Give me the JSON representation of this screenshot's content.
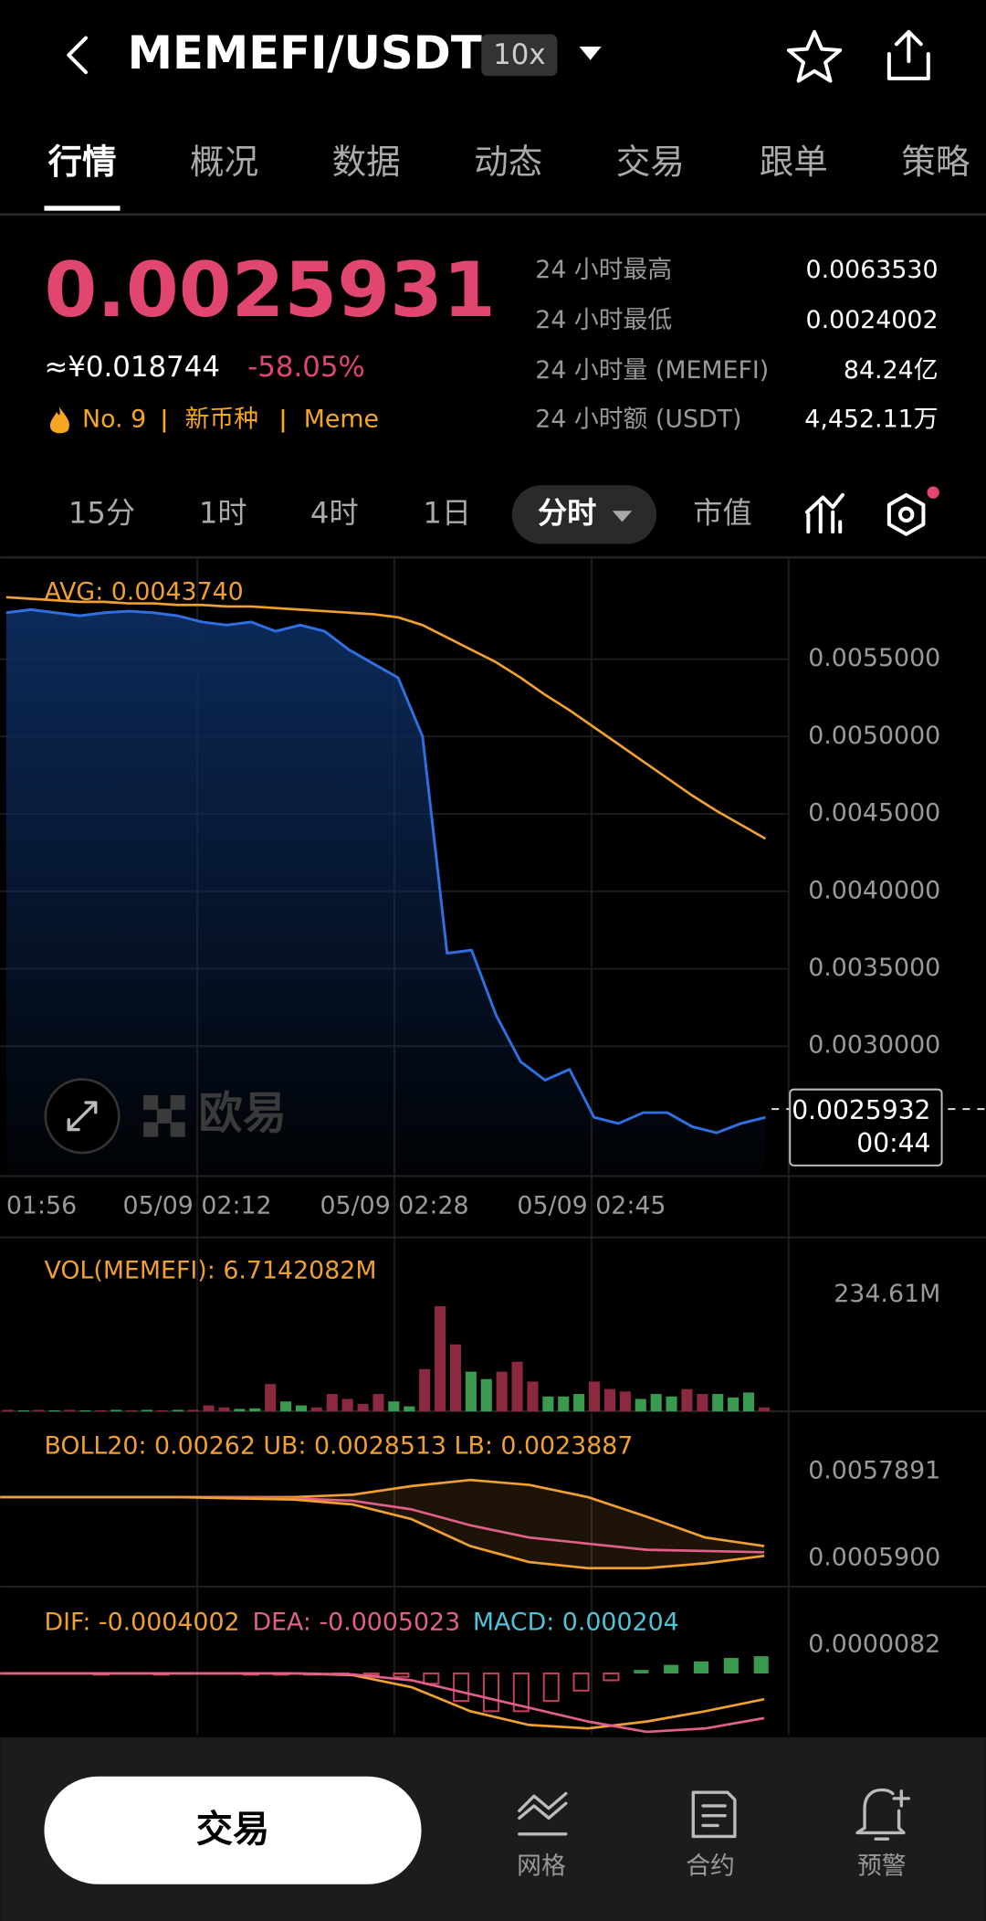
{
  "header": {
    "pair": "MEMEFI/USDT",
    "leverage": "10x"
  },
  "tabs": [
    "行情",
    "概况",
    "数据",
    "动态",
    "交易",
    "跟单",
    "策略"
  ],
  "price": {
    "last": "0.0025931",
    "cny": "≈¥0.018744",
    "change": "-58.05%",
    "rank": "No. 9",
    "tags": [
      "新币种",
      "Meme"
    ]
  },
  "stats": [
    {
      "label": "24 小时最高",
      "value": "0.0063530"
    },
    {
      "label": "24 小时最低",
      "value": "0.0024002"
    },
    {
      "label": "24 小时量 (MEMEFI)",
      "value": "84.24亿"
    },
    {
      "label": "24 小时额 (USDT)",
      "value": "4,452.11万"
    }
  ],
  "intervals": [
    "15分",
    "1时",
    "4时",
    "1日",
    "分时",
    "市值"
  ],
  "chart": {
    "avg_label": "AVG: 0.0043740",
    "watermark": "欧易",
    "ylim": [
      0.00216,
      0.006157
    ],
    "yticks": [
      {
        "value": 0.0055,
        "label": "0.0055000"
      },
      {
        "value": 0.005,
        "label": "0.0050000"
      },
      {
        "value": 0.0045,
        "label": "0.0045000"
      },
      {
        "value": 0.004,
        "label": "0.0040000"
      },
      {
        "value": 0.0035,
        "label": "0.0035000"
      },
      {
        "value": 0.003,
        "label": "0.0030000"
      }
    ],
    "price_color": "#2f6fe0",
    "avg_color": "#f0a030",
    "price": [
      0.0058,
      0.00582,
      0.0058,
      0.00578,
      0.0058,
      0.00581,
      0.0058,
      0.00578,
      0.00574,
      0.00572,
      0.00574,
      0.00568,
      0.00572,
      0.00568,
      0.00556,
      0.00547,
      0.00538,
      0.005,
      0.0036,
      0.00362,
      0.0032,
      0.0029,
      0.00278,
      0.00285,
      0.00254,
      0.0025,
      0.00257,
      0.00257,
      0.00248,
      0.00244,
      0.0025,
      0.00254
    ],
    "avg": [
      0.0059,
      0.00589,
      0.00588,
      0.00587,
      0.00587,
      0.00586,
      0.00586,
      0.00585,
      0.00585,
      0.00584,
      0.00584,
      0.00583,
      0.00582,
      0.00581,
      0.0058,
      0.00579,
      0.00577,
      0.00572,
      0.00564,
      0.00556,
      0.00548,
      0.00538,
      0.00527,
      0.00517,
      0.00506,
      0.00495,
      0.00484,
      0.00473,
      0.00462,
      0.00452,
      0.00443,
      0.00434
    ],
    "current": {
      "value": 0.0025932,
      "label": "0.0025932"
    },
    "countdown": "00:44",
    "xticks": [
      "01:56",
      "05/09 02:12",
      "05/09 02:28",
      "05/09 02:45"
    ]
  },
  "volume": {
    "label": "VOL(MEMEFI): 6.7142082M",
    "ylim": [
      0,
      234.61
    ],
    "yticks": [
      {
        "value": 234.61,
        "label": "234.61M"
      }
    ],
    "up_color": "#3a9a4f",
    "down_color": "#8b2941",
    "values": [
      3,
      2,
      3,
      2,
      3,
      2,
      2,
      3,
      2,
      3,
      2,
      3,
      3,
      12,
      8,
      5,
      6,
      55,
      20,
      12,
      8,
      35,
      25,
      15,
      35,
      20,
      10,
      85,
      212,
      135,
      80,
      65,
      80,
      100,
      60,
      30,
      30,
      35,
      60,
      45,
      40,
      25,
      35,
      30,
      45,
      35,
      35,
      28,
      38,
      8
    ],
    "up": [
      0,
      1,
      0,
      1,
      0,
      1,
      0,
      1,
      0,
      1,
      0,
      1,
      0,
      0,
      0,
      1,
      1,
      0,
      1,
      1,
      0,
      0,
      0,
      0,
      0,
      1,
      1,
      0,
      0,
      0,
      1,
      1,
      0,
      0,
      0,
      1,
      1,
      1,
      0,
      0,
      0,
      1,
      1,
      1,
      0,
      0,
      1,
      1,
      1,
      0
    ]
  },
  "boll": {
    "label": "BOLL20: 0.00262 UB: 0.0028513 LB: 0.0023887",
    "ylim": [
      -0.001094,
      0.009158
    ],
    "yticks": [
      0.0057891,
      {
        "value": 0.00059,
        "label": "0.0005900"
      }
    ],
    "band_color": "#f0a030",
    "mid_color": "#e0608a",
    "ub": [
      0.004251,
      0.004251,
      0.004251,
      0.004251,
      0.004251,
      0.004251,
      0.004398,
      0.00491,
      0.005276,
      0.004984,
      0.004251,
      0.00308,
      0.001835,
      0.001322
    ],
    "mid": [
      0.004251,
      0.004251,
      0.004251,
      0.004251,
      0.004251,
      0.004178,
      0.004032,
      0.003519,
      0.002567,
      0.001835,
      0.001469,
      0.001102,
      0.001029,
      0.000956
    ],
    "lb": [
      0.004251,
      0.004251,
      0.004251,
      0.004251,
      0.004178,
      0.004105,
      0.003812,
      0.002933,
      0.001322,
      0.00037,
      4e-06,
      4e-06,
      0.000297,
      0.000736
    ]
  },
  "macd": {
    "dif_label": "DIF: -0.0004002",
    "dea_label": "DEA: -0.0005023",
    "macd_label": "MACD: 0.000204",
    "ylim": [
      -1.75e-05,
      2.35e-05
    ],
    "yticks": [
      8.2e-06
    ],
    "dif_color": "#f0a030",
    "dea_color": "#e0608a",
    "up_color": "#3a9a4f",
    "down_color": "#c0405a",
    "dif": [
      0,
      0,
      0,
      0,
      0,
      0,
      -5e-07,
      -4e-06,
      -1.1e-05,
      -1.5e-05,
      -1.6e-05,
      -1.4e-05,
      -1.1e-05,
      -7.5e-06
    ],
    "dea": [
      0,
      0,
      0,
      0,
      0,
      0,
      -3e-07,
      -2e-06,
      -6e-06,
      -1e-05,
      -1.4e-05,
      -1.7e-05,
      -1.6e-05,
      -1.3e-05
    ],
    "hist": [
      3e-07,
      3e-07,
      3e-07,
      -2e-07,
      3e-07,
      -2e-07,
      3e-07,
      3e-07,
      -2e-07,
      -3e-07,
      -3e-07,
      -4e-07,
      -5e-07,
      -1e-06,
      -3e-06,
      -8e-06,
      -1.1e-05,
      -1.1e-05,
      -8e-06,
      -5e-06,
      -2e-06,
      1e-06,
      2.5e-06,
      3.5e-06,
      4.5e-06,
      5e-06
    ]
  },
  "bottom": {
    "trade": "交易",
    "nav": [
      "网格",
      "合约",
      "预警"
    ]
  }
}
